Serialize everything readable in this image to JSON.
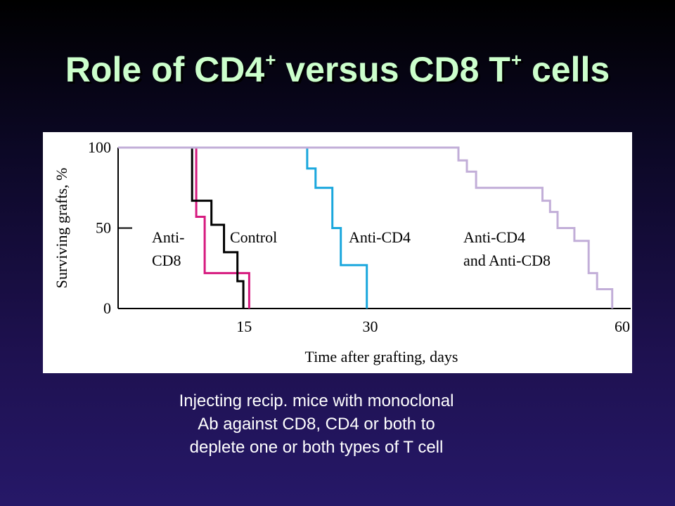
{
  "slide": {
    "title_pre": "Role of CD4",
    "title_sup1": "+",
    "title_mid": " versus CD8 T",
    "title_sup2": "+",
    "title_post": " cells",
    "caption_lines": [
      "Injecting recip. mice with monoclonal",
      "Ab against CD8, CD4 or both to",
      "deplete one or both types of T cell"
    ]
  },
  "chart_data": {
    "type": "line",
    "step": true,
    "title": "",
    "xlabel": "Time after grafting, days",
    "ylabel": "Surviving grafts, %",
    "xlim": [
      0,
      61
    ],
    "ylim": [
      0,
      100
    ],
    "xticks": [
      15,
      30,
      60
    ],
    "yticks": [
      0,
      50,
      100
    ],
    "grid": false,
    "series": [
      {
        "label_lines": [
          "Anti-",
          "CD8"
        ],
        "color": "#d61a7f",
        "points": [
          [
            0,
            100
          ],
          [
            9.3,
            100
          ],
          [
            9.3,
            57
          ],
          [
            10.3,
            57
          ],
          [
            10.3,
            22
          ],
          [
            15.6,
            22
          ],
          [
            15.6,
            0
          ]
        ]
      },
      {
        "label_lines": [
          "Control"
        ],
        "color": "#000000",
        "points": [
          [
            0,
            100
          ],
          [
            8.8,
            100
          ],
          [
            8.8,
            67
          ],
          [
            11.1,
            67
          ],
          [
            11.1,
            52
          ],
          [
            12.6,
            52
          ],
          [
            12.6,
            35
          ],
          [
            14.2,
            35
          ],
          [
            14.2,
            17
          ],
          [
            14.9,
            17
          ],
          [
            14.9,
            0
          ]
        ]
      },
      {
        "label_lines": [
          "Anti-CD4"
        ],
        "color": "#1aa7dd",
        "points": [
          [
            0,
            100
          ],
          [
            22.5,
            100
          ],
          [
            22.5,
            87
          ],
          [
            23.5,
            87
          ],
          [
            23.5,
            75
          ],
          [
            25.5,
            75
          ],
          [
            25.5,
            50
          ],
          [
            26.5,
            50
          ],
          [
            26.5,
            27
          ],
          [
            29.6,
            27
          ],
          [
            29.6,
            0
          ]
        ]
      },
      {
        "label_lines": [
          "Anti-CD4",
          "and Anti-CD8"
        ],
        "color": "#c2aed8",
        "points": [
          [
            0,
            100
          ],
          [
            40.5,
            100
          ],
          [
            40.5,
            92
          ],
          [
            41.5,
            92
          ],
          [
            41.5,
            85
          ],
          [
            42.6,
            85
          ],
          [
            42.6,
            75
          ],
          [
            50.5,
            75
          ],
          [
            50.5,
            67
          ],
          [
            51.4,
            67
          ],
          [
            51.4,
            60
          ],
          [
            52.3,
            60
          ],
          [
            52.3,
            50
          ],
          [
            54.3,
            50
          ],
          [
            54.3,
            42
          ],
          [
            56,
            42
          ],
          [
            56,
            22
          ],
          [
            57,
            22
          ],
          [
            57,
            12
          ],
          [
            58.8,
            12
          ],
          [
            58.8,
            0
          ]
        ]
      }
    ]
  }
}
